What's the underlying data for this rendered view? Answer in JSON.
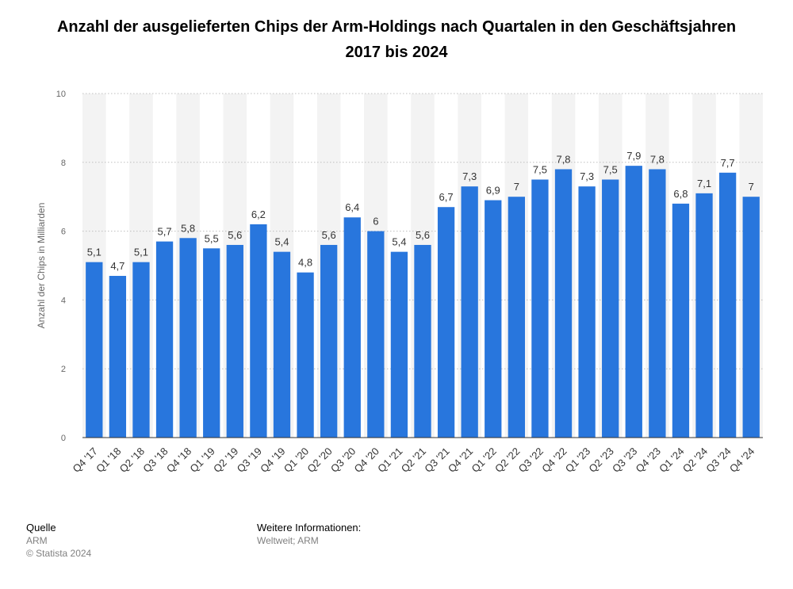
{
  "chart_data": {
    "type": "bar",
    "title": "Anzahl der ausgelieferten Chips der Arm-Holdings nach Quartalen in den Geschäftsjahren 2017 bis 2024",
    "xlabel": "",
    "ylabel": "Anzahl der Chips in Milliarden",
    "ylim": [
      0,
      10
    ],
    "yticks": [
      "0",
      "2",
      "4",
      "6",
      "8",
      "10"
    ],
    "grid": true,
    "bar_color": "#2876dd",
    "categories": [
      "Q4 '17",
      "Q1 '18",
      "Q2 '18",
      "Q3 '18",
      "Q4 '18",
      "Q1 '19",
      "Q2 '19",
      "Q3 '19",
      "Q4 '19",
      "Q1 '20",
      "Q2 '20",
      "Q3 '20",
      "Q4 '20",
      "Q1 '21",
      "Q2 '21",
      "Q3 '21",
      "Q4 '21",
      "Q1 '22",
      "Q2 '22",
      "Q3 '22",
      "Q4 '22",
      "Q1 '23",
      "Q2 '23",
      "Q3 '23",
      "Q4 '23",
      "Q1 '24",
      "Q2 '24",
      "Q3 '24",
      "Q4 '24"
    ],
    "values": [
      5.1,
      4.7,
      5.1,
      5.7,
      5.8,
      5.5,
      5.6,
      6.2,
      5.4,
      4.8,
      5.6,
      6.4,
      6,
      5.4,
      5.6,
      6.7,
      7.3,
      6.9,
      7,
      7.5,
      7.8,
      7.3,
      7.5,
      7.9,
      7.8,
      6.8,
      7.1,
      7.7,
      7
    ],
    "labels": [
      "5,1",
      "4,7",
      "5,1",
      "5,7",
      "5,8",
      "5,5",
      "5,6",
      "6,2",
      "5,4",
      "4,8",
      "5,6",
      "6,4",
      "6",
      "5,4",
      "5,6",
      "6,7",
      "7,3",
      "6,9",
      "7",
      "7,5",
      "7,8",
      "7,3",
      "7,5",
      "7,9",
      "7,8",
      "6,8",
      "7,1",
      "7,7",
      "7"
    ]
  },
  "footer": {
    "source_heading": "Quelle",
    "source_value": "ARM",
    "copyright": "© Statista 2024",
    "info_heading": "Weitere Informationen:",
    "info_value": "Weltweit; ARM"
  }
}
